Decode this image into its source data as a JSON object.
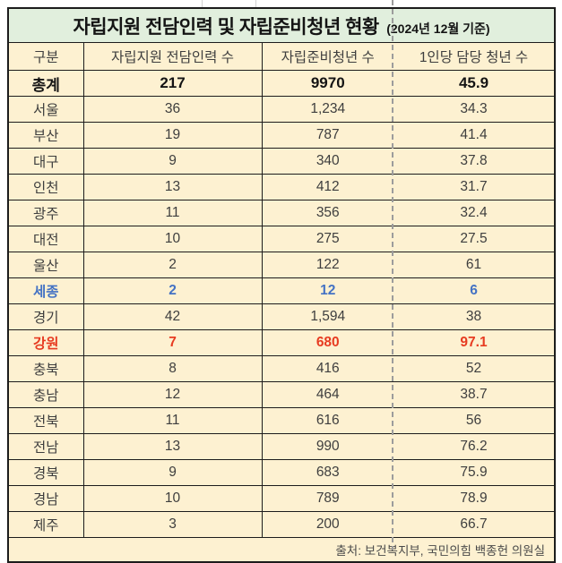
{
  "title": {
    "main": "자립지원 전담인력 및 자립준비청년 현황",
    "date_note": "(2024년 12월 기준)"
  },
  "table": {
    "columns": [
      "구분",
      "자립지원 전담인력 수",
      "자립준비청년 수",
      "1인당 담당 청년 수"
    ],
    "rows": [
      {
        "region": "총계",
        "staff": "217",
        "youth": "9970",
        "per_staff": "45.9",
        "style": "total"
      },
      {
        "region": "서울",
        "staff": "36",
        "youth": "1,234",
        "per_staff": "34.3",
        "style": "default"
      },
      {
        "region": "부산",
        "staff": "19",
        "youth": "787",
        "per_staff": "41.4",
        "style": "default"
      },
      {
        "region": "대구",
        "staff": "9",
        "youth": "340",
        "per_staff": "37.8",
        "style": "default"
      },
      {
        "region": "인천",
        "staff": "13",
        "youth": "412",
        "per_staff": "31.7",
        "style": "default"
      },
      {
        "region": "광주",
        "staff": "11",
        "youth": "356",
        "per_staff": "32.4",
        "style": "default"
      },
      {
        "region": "대전",
        "staff": "10",
        "youth": "275",
        "per_staff": "27.5",
        "style": "default"
      },
      {
        "region": "울산",
        "staff": "2",
        "youth": "122",
        "per_staff": "61",
        "style": "default"
      },
      {
        "region": "세종",
        "staff": "2",
        "youth": "12",
        "per_staff": "6",
        "style": "highlight-blue"
      },
      {
        "region": "경기",
        "staff": "42",
        "youth": "1,594",
        "per_staff": "38",
        "style": "default"
      },
      {
        "region": "강원",
        "staff": "7",
        "youth": "680",
        "per_staff": "97.1",
        "style": "highlight-red"
      },
      {
        "region": "충북",
        "staff": "8",
        "youth": "416",
        "per_staff": "52",
        "style": "default"
      },
      {
        "region": "충남",
        "staff": "12",
        "youth": "464",
        "per_staff": "38.7",
        "style": "default"
      },
      {
        "region": "전북",
        "staff": "11",
        "youth": "616",
        "per_staff": "56",
        "style": "default"
      },
      {
        "region": "전남",
        "staff": "13",
        "youth": "990",
        "per_staff": "76.2",
        "style": "default"
      },
      {
        "region": "경북",
        "staff": "9",
        "youth": "683",
        "per_staff": "75.9",
        "style": "default"
      },
      {
        "region": "경남",
        "staff": "10",
        "youth": "789",
        "per_staff": "78.9",
        "style": "default"
      },
      {
        "region": "제주",
        "staff": "3",
        "youth": "200",
        "per_staff": "66.7",
        "style": "default"
      }
    ]
  },
  "source": "출처: 보건복지부, 국민의힘 백종헌 의원실",
  "colors": {
    "title_bg": "#e1efdd",
    "cell_bg": "#fdf1d1",
    "border": "#1c1c1c",
    "ink": "#3e3e3e",
    "ink_strong": "#141414",
    "ink_soft": "#4a4a4a",
    "highlight_blue": "#4472c4",
    "highlight_red": "#e73b21",
    "dashed_line": "#9c9c9c",
    "gridstub": "#d2d2d2"
  }
}
